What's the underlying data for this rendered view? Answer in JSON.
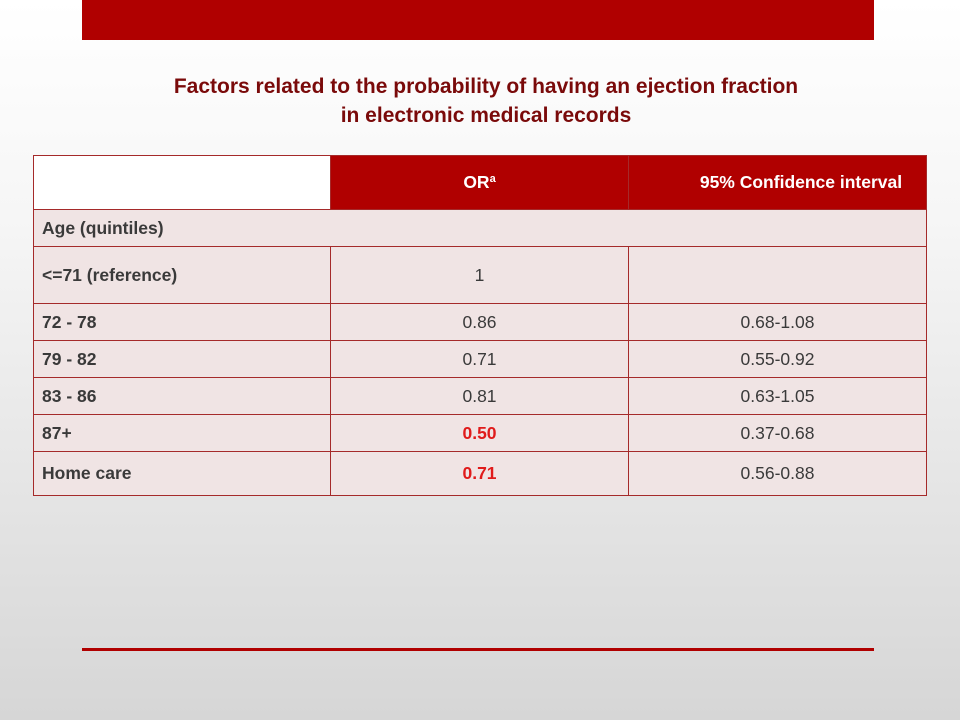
{
  "title": {
    "line1": "Factors related to the probability of having an ejection fraction",
    "line2": "in electronic medical records"
  },
  "table": {
    "header": {
      "or_label": "OR",
      "or_superscript": "a",
      "ci_label": "95% Confidence interval"
    },
    "section_age": "Age (quintiles)",
    "rows": [
      {
        "label": "<=71  (reference)",
        "or": "1",
        "ci": ""
      },
      {
        "label": "72 - 78",
        "or": "0.86",
        "ci": "0.68-1.08"
      },
      {
        "label": "79 - 82",
        "or": "0.71",
        "ci": "0.55-0.92"
      },
      {
        "label": "83 - 86",
        "or": "0.81",
        "ci": "0.63-1.05"
      },
      {
        "label": "87+",
        "or": "0.50",
        "ci": "0.37-0.68",
        "significant": true
      }
    ],
    "home_care": {
      "label": "Home care",
      "or": "0.71",
      "ci": "0.56-0.88",
      "significant": true
    }
  },
  "colors": {
    "brand_red": "#b00000",
    "title_red": "#7a0a0a",
    "significant_red": "#e01b1b",
    "cell_fill": "#f0e4e4"
  }
}
